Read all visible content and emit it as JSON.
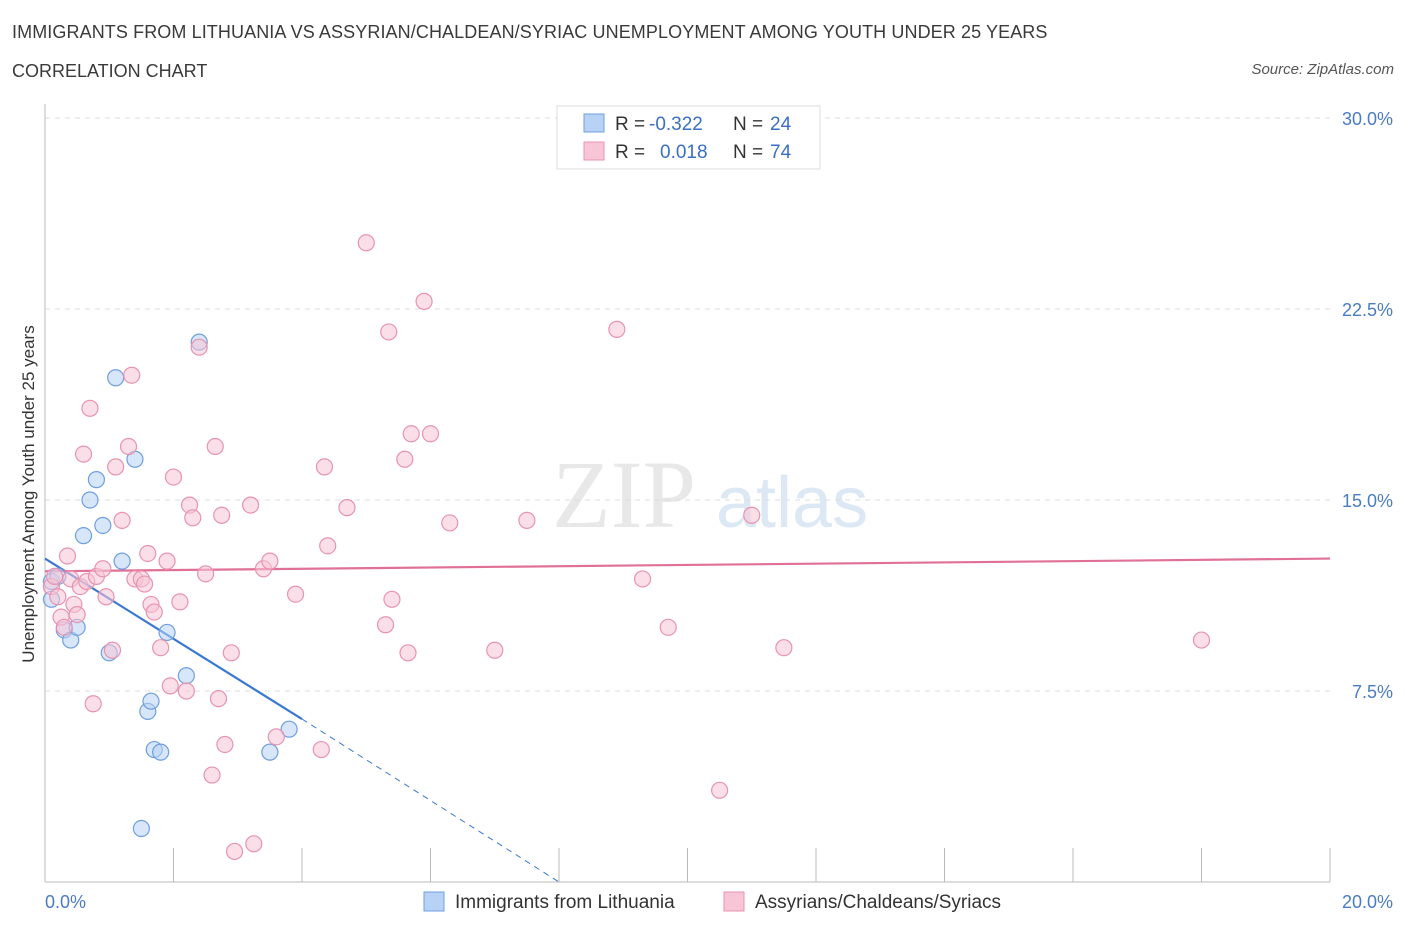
{
  "header": {
    "title": "IMMIGRANTS FROM LITHUANIA VS ASSYRIAN/CHALDEAN/SYRIAC UNEMPLOYMENT AMONG YOUTH UNDER 25 YEARS",
    "subtitle": "CORRELATION CHART",
    "source": "Source: ZipAtlas.com"
  },
  "watermark": {
    "zip": "ZIP",
    "atlas": "atlas"
  },
  "legend": {
    "rows": [
      {
        "r_label": "R =",
        "r_value": "-0.322",
        "n_label": "N =",
        "n_value": "24"
      },
      {
        "r_label": "R =",
        "r_value": "0.018",
        "n_label": "N =",
        "n_value": "74"
      }
    ]
  },
  "chart_data": {
    "type": "scatter",
    "title": "IMMIGRANTS FROM LITHUANIA VS ASSYRIAN/CHALDEAN/SYRIAC UNEMPLOYMENT AMONG YOUTH UNDER 25 YEARS",
    "xlabel": "",
    "ylabel": "Unemployment Among Youth under 25 years",
    "xlim": [
      0,
      20
    ],
    "ylim": [
      0,
      30
    ],
    "x_tick_labels": [
      "0.0%",
      "20.0%"
    ],
    "y_ticks": [
      7.5,
      15.0,
      22.5,
      30.0
    ],
    "y_tick_labels": [
      "7.5%",
      "15.0%",
      "22.5%",
      "30.0%"
    ],
    "series": [
      {
        "name": "Immigrants from Lithuania",
        "color": "#6f9fe0",
        "fill": "#b8d2f5",
        "r": -0.322,
        "n": 24,
        "trend": {
          "x0": 0.0,
          "y0": 12.7,
          "x1": 4.0,
          "y1": 6.4,
          "dash_to_x": 8.0,
          "dash_to_y": 0.0
        },
        "points": [
          [
            0.1,
            11.8
          ],
          [
            0.2,
            12.0
          ],
          [
            0.1,
            11.1
          ],
          [
            0.3,
            9.9
          ],
          [
            0.4,
            9.5
          ],
          [
            0.5,
            10.0
          ],
          [
            0.6,
            13.6
          ],
          [
            0.7,
            15.0
          ],
          [
            0.8,
            15.8
          ],
          [
            0.9,
            14.0
          ],
          [
            1.0,
            9.0
          ],
          [
            1.1,
            19.8
          ],
          [
            1.2,
            12.6
          ],
          [
            1.4,
            16.6
          ],
          [
            1.6,
            6.7
          ],
          [
            1.65,
            7.1
          ],
          [
            1.7,
            5.2
          ],
          [
            1.8,
            5.1
          ],
          [
            1.9,
            9.8
          ],
          [
            2.2,
            8.1
          ],
          [
            2.4,
            21.2
          ],
          [
            3.5,
            5.1
          ],
          [
            3.8,
            6.0
          ],
          [
            1.5,
            2.1
          ]
        ]
      },
      {
        "name": "Assyrians/Chaldeans/Syriacs",
        "color": "#e893b0",
        "fill": "#f7c5d5",
        "r": 0.018,
        "n": 74,
        "trend": {
          "x0": 0.0,
          "y0": 12.2,
          "x1": 20.0,
          "y1": 12.7
        },
        "points": [
          [
            0.1,
            11.6
          ],
          [
            0.15,
            12.0
          ],
          [
            0.2,
            11.2
          ],
          [
            0.25,
            10.4
          ],
          [
            0.3,
            10.0
          ],
          [
            0.35,
            12.8
          ],
          [
            0.4,
            11.9
          ],
          [
            0.45,
            10.9
          ],
          [
            0.5,
            10.5
          ],
          [
            0.55,
            11.6
          ],
          [
            0.6,
            16.8
          ],
          [
            0.65,
            11.8
          ],
          [
            0.7,
            18.6
          ],
          [
            0.75,
            7.0
          ],
          [
            0.8,
            12.0
          ],
          [
            0.9,
            12.3
          ],
          [
            0.95,
            11.2
          ],
          [
            1.05,
            9.1
          ],
          [
            1.1,
            16.3
          ],
          [
            1.2,
            14.2
          ],
          [
            1.3,
            17.1
          ],
          [
            1.35,
            19.9
          ],
          [
            1.4,
            11.9
          ],
          [
            1.5,
            11.9
          ],
          [
            1.55,
            11.7
          ],
          [
            1.6,
            12.9
          ],
          [
            1.65,
            10.9
          ],
          [
            1.7,
            10.6
          ],
          [
            1.8,
            9.2
          ],
          [
            1.9,
            12.6
          ],
          [
            1.95,
            7.7
          ],
          [
            2.0,
            15.9
          ],
          [
            2.1,
            11.0
          ],
          [
            2.2,
            7.5
          ],
          [
            2.25,
            14.8
          ],
          [
            2.3,
            14.3
          ],
          [
            2.4,
            21.0
          ],
          [
            2.5,
            12.1
          ],
          [
            2.6,
            4.2
          ],
          [
            2.65,
            17.1
          ],
          [
            2.7,
            7.2
          ],
          [
            2.75,
            14.4
          ],
          [
            2.8,
            5.4
          ],
          [
            2.9,
            9.0
          ],
          [
            2.95,
            1.2
          ],
          [
            3.2,
            14.8
          ],
          [
            3.25,
            1.5
          ],
          [
            3.4,
            12.3
          ],
          [
            3.5,
            12.6
          ],
          [
            3.6,
            5.7
          ],
          [
            3.9,
            11.3
          ],
          [
            4.3,
            5.2
          ],
          [
            4.35,
            16.3
          ],
          [
            4.4,
            13.2
          ],
          [
            4.7,
            14.7
          ],
          [
            5.0,
            25.1
          ],
          [
            5.3,
            10.1
          ],
          [
            5.4,
            11.1
          ],
          [
            5.35,
            21.6
          ],
          [
            5.6,
            16.6
          ],
          [
            5.7,
            17.6
          ],
          [
            5.65,
            9.0
          ],
          [
            5.9,
            22.8
          ],
          [
            6.0,
            17.6
          ],
          [
            6.3,
            14.1
          ],
          [
            7.0,
            9.1
          ],
          [
            7.5,
            14.2
          ],
          [
            8.9,
            21.7
          ],
          [
            9.3,
            11.9
          ],
          [
            9.7,
            10.0
          ],
          [
            10.5,
            3.6
          ],
          [
            11.0,
            14.4
          ],
          [
            11.5,
            9.2
          ],
          [
            18.0,
            9.5
          ]
        ]
      }
    ]
  },
  "bottom_legend": {
    "items": [
      {
        "label": "Immigrants from Lithuania"
      },
      {
        "label": "Assyrians/Chaldeans/Syriacs"
      }
    ]
  }
}
